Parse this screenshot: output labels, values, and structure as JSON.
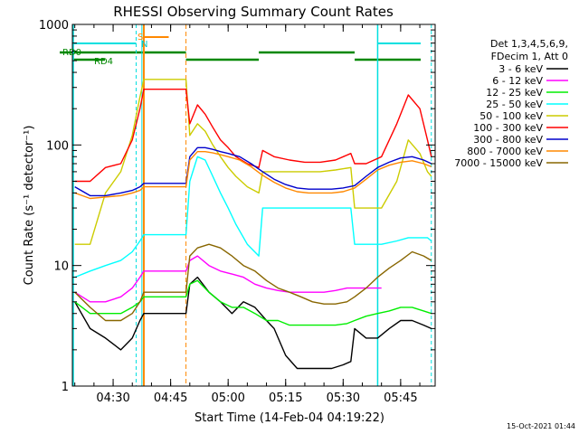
{
  "chart_data": {
    "type": "line",
    "title": "RHESSI Observing Summary Count Rates",
    "xlabel": "Start Time (14-Feb-04 04:19:22)",
    "ylabel": "Count Rate (s⁻¹ detector⁻¹)",
    "y_scale": "log",
    "ylim": [
      1,
      1000
    ],
    "xlim": [
      "04:19:22",
      "05:54:00"
    ],
    "x_ticks": [
      "04:30",
      "04:45",
      "05:00",
      "05:15",
      "05:30",
      "05:45"
    ],
    "y_ticks": [
      "1",
      "10",
      "100",
      "1000"
    ],
    "grid": false,
    "legend_position": "right",
    "legend_header": [
      "Det 1,3,4,5,6,9,",
      "FDecim 1, Att 0"
    ],
    "annotations": [
      {
        "label": "RD0",
        "color": "#008800"
      },
      {
        "label": "RD4",
        "color": "#008800"
      },
      {
        "label": "S",
        "color": "#ff8800"
      },
      {
        "label": "N",
        "color": "#00e0e0"
      }
    ],
    "footer": "15-Oct-2021 01:44",
    "series": [
      {
        "name": "3 - 6 keV",
        "color": "#000000",
        "x": [
          "04:20",
          "04:24",
          "04:28",
          "04:32",
          "04:35",
          "04:37",
          "04:38",
          "04:49",
          "04:50",
          "04:52",
          "04:55",
          "04:58",
          "05:01",
          "05:04",
          "05:07",
          "05:10",
          "05:12",
          "05:15",
          "05:18",
          "05:21",
          "05:24",
          "05:27",
          "05:30",
          "05:32",
          "05:33",
          "05:36",
          "05:39",
          "05:42",
          "05:45",
          "05:48",
          "05:51",
          "05:53"
        ],
        "y": [
          5,
          3,
          2.5,
          2,
          2.5,
          3.5,
          4,
          4,
          7,
          8,
          6,
          5,
          4,
          5,
          4.5,
          3.5,
          3,
          1.8,
          1.4,
          1.4,
          1.4,
          1.4,
          1.5,
          1.6,
          3,
          2.5,
          2.5,
          3,
          3.5,
          3.5,
          3.2,
          3
        ]
      },
      {
        "name": "6 - 12 keV",
        "color": "#ff00ff",
        "x": [
          "04:20",
          "04:24",
          "04:28",
          "04:32",
          "04:35",
          "04:37",
          "04:38",
          "04:49",
          "04:50",
          "04:52",
          "04:55",
          "04:58",
          "05:01",
          "05:04",
          "05:07",
          "05:10",
          "05:13",
          "05:16",
          "05:19",
          "05:22",
          "05:25",
          "05:28",
          "05:31",
          "05:33",
          "05:36",
          "05:40"
        ],
        "y": [
          6,
          5,
          5,
          5.5,
          6.5,
          8,
          9,
          9,
          11,
          12,
          10,
          9,
          8.5,
          8,
          7,
          6.5,
          6.2,
          6,
          6,
          6,
          6,
          6.2,
          6.5,
          6.5,
          6.5,
          6.5
        ]
      },
      {
        "name": "12 - 25 keV",
        "color": "#00ee00",
        "x": [
          "04:20",
          "04:24",
          "04:28",
          "04:32",
          "04:35",
          "04:37",
          "04:38",
          "04:49",
          "04:50",
          "04:52",
          "04:55",
          "04:58",
          "05:01",
          "05:04",
          "05:07",
          "05:10",
          "05:13",
          "05:16",
          "05:19",
          "05:22",
          "05:25",
          "05:28",
          "05:31",
          "05:33",
          "05:36",
          "05:39",
          "05:42",
          "05:45",
          "05:48",
          "05:51",
          "05:53"
        ],
        "y": [
          5,
          4,
          4,
          4,
          4.5,
          5,
          5.5,
          5.5,
          7,
          7.5,
          6,
          5,
          4.5,
          4.5,
          4,
          3.5,
          3.5,
          3.2,
          3.2,
          3.2,
          3.2,
          3.2,
          3.3,
          3.5,
          3.8,
          4,
          4.2,
          4.5,
          4.5,
          4.2,
          4
        ]
      },
      {
        "name": "25 - 50 keV",
        "color": "#00ffff",
        "x": [
          "04:20",
          "04:24",
          "04:28",
          "04:32",
          "04:35",
          "04:37",
          "04:38",
          "04:49",
          "04:50",
          "04:52",
          "04:54",
          "04:56",
          "04:58",
          "05:00",
          "05:02",
          "05:05",
          "05:08",
          "05:09",
          "05:12",
          "05:16",
          "05:20",
          "05:24",
          "05:28",
          "05:32",
          "05:33",
          "05:36",
          "05:40",
          "05:44",
          "05:47",
          "05:50",
          "05:52",
          "05:53"
        ],
        "y": [
          8,
          9,
          10,
          11,
          13,
          16,
          18,
          18,
          50,
          80,
          75,
          55,
          40,
          30,
          22,
          15,
          12,
          30,
          30,
          30,
          30,
          30,
          30,
          30,
          15,
          15,
          15,
          16,
          17,
          17,
          17,
          16
        ]
      },
      {
        "name": "50 - 100 keV",
        "color": "#cccc00",
        "x": [
          "04:20",
          "04:24",
          "04:28",
          "04:32",
          "04:35",
          "04:37",
          "04:38",
          "04:49",
          "04:50",
          "04:52",
          "04:54",
          "04:56",
          "04:58",
          "05:00",
          "05:02",
          "05:05",
          "05:08",
          "05:09",
          "05:12",
          "05:16",
          "05:20",
          "05:24",
          "05:28",
          "05:32",
          "05:33",
          "05:36",
          "05:40",
          "05:44",
          "05:47",
          "05:50",
          "05:52",
          "05:53"
        ],
        "y": [
          15,
          15,
          40,
          60,
          120,
          250,
          350,
          350,
          120,
          150,
          130,
          100,
          80,
          65,
          55,
          45,
          40,
          60,
          60,
          60,
          60,
          60,
          62,
          65,
          30,
          30,
          30,
          50,
          110,
          85,
          60,
          55
        ]
      },
      {
        "name": "100 - 300 keV",
        "color": "#ff0000",
        "x": [
          "04:20",
          "04:24",
          "04:28",
          "04:32",
          "04:35",
          "04:37",
          "04:38",
          "04:49",
          "04:50",
          "04:52",
          "04:54",
          "04:56",
          "04:58",
          "05:00",
          "05:02",
          "05:05",
          "05:08",
          "05:09",
          "05:12",
          "05:16",
          "05:20",
          "05:24",
          "05:28",
          "05:32",
          "05:33",
          "05:36",
          "05:40",
          "05:44",
          "05:47",
          "05:50",
          "05:52",
          "05:53"
        ],
        "y": [
          50,
          50,
          65,
          70,
          110,
          200,
          290,
          290,
          150,
          215,
          180,
          140,
          110,
          95,
          80,
          70,
          65,
          90,
          80,
          75,
          72,
          72,
          75,
          85,
          70,
          70,
          80,
          150,
          260,
          200,
          110,
          80
        ]
      },
      {
        "name": "300 - 800 keV",
        "color": "#0000cc",
        "x": [
          "04:20",
          "04:24",
          "04:28",
          "04:32",
          "04:35",
          "04:37",
          "04:38",
          "04:49",
          "04:50",
          "04:52",
          "04:54",
          "04:56",
          "04:58",
          "05:00",
          "05:03",
          "05:06",
          "05:09",
          "05:12",
          "05:15",
          "05:18",
          "05:21",
          "05:24",
          "05:27",
          "05:30",
          "05:33",
          "05:36",
          "05:39",
          "05:42",
          "05:45",
          "05:48",
          "05:51",
          "05:53"
        ],
        "y": [
          45,
          38,
          38,
          40,
          42,
          45,
          48,
          48,
          80,
          95,
          95,
          92,
          88,
          85,
          80,
          70,
          60,
          52,
          47,
          44,
          43,
          43,
          43,
          44,
          46,
          55,
          65,
          72,
          78,
          80,
          75,
          70
        ]
      },
      {
        "name": "800 - 7000 keV",
        "color": "#ff8800",
        "x": [
          "04:20",
          "04:24",
          "04:28",
          "04:32",
          "04:35",
          "04:37",
          "04:38",
          "04:49",
          "04:50",
          "04:52",
          "04:54",
          "04:56",
          "04:58",
          "05:00",
          "05:03",
          "05:06",
          "05:09",
          "05:12",
          "05:15",
          "05:18",
          "05:21",
          "05:24",
          "05:27",
          "05:30",
          "05:33",
          "05:36",
          "05:39",
          "05:42",
          "05:45",
          "05:48",
          "05:51",
          "05:53"
        ],
        "y": [
          40,
          36,
          37,
          38,
          40,
          42,
          45,
          45,
          75,
          88,
          88,
          86,
          83,
          80,
          75,
          66,
          56,
          49,
          44,
          41,
          40,
          40,
          40,
          41,
          44,
          52,
          62,
          68,
          72,
          74,
          70,
          66
        ]
      },
      {
        "name": "7000 - 15000 keV",
        "color": "#886600",
        "x": [
          "04:20",
          "04:24",
          "04:28",
          "04:32",
          "04:35",
          "04:37",
          "04:38",
          "04:49",
          "04:50",
          "04:52",
          "04:55",
          "04:58",
          "05:01",
          "05:04",
          "05:07",
          "05:10",
          "05:13",
          "05:16",
          "05:19",
          "05:22",
          "05:25",
          "05:28",
          "05:31",
          "05:33",
          "05:36",
          "05:39",
          "05:42",
          "05:45",
          "05:48",
          "05:51",
          "05:53"
        ],
        "y": [
          6,
          4.5,
          3.5,
          3.5,
          4,
          5,
          6,
          6,
          12,
          14,
          15,
          14,
          12,
          10,
          9,
          7.5,
          6.5,
          6,
          5.5,
          5,
          4.8,
          4.8,
          5,
          5.5,
          6.5,
          8,
          9.5,
          11,
          13,
          12,
          11
        ]
      }
    ]
  }
}
